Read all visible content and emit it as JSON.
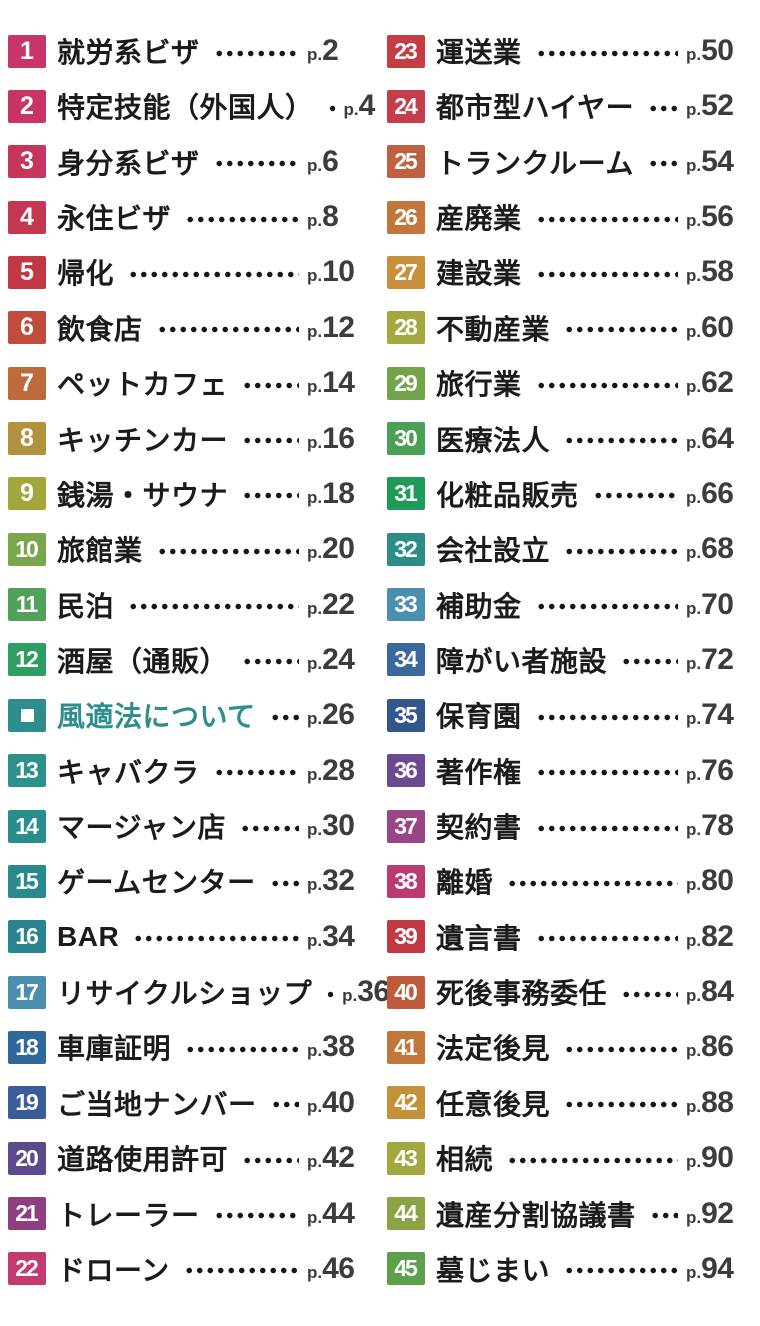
{
  "page_prefix": "p.",
  "text_color": "#1b1b1b",
  "page_number_color": "#3c3c3c",
  "dot_color": "#161616",
  "marker_icon": "white-square-icon",
  "columns": {
    "left": [
      {
        "num": "1",
        "title": "就労系ビザ",
        "page": "2",
        "color": "#c9356a"
      },
      {
        "num": "2",
        "title": "特定技能（外国人）",
        "page": "4",
        "color": "#c83563"
      },
      {
        "num": "3",
        "title": "身分系ビザ",
        "page": "6",
        "color": "#c6355c"
      },
      {
        "num": "4",
        "title": "永住ビザ",
        "page": "8",
        "color": "#c43750"
      },
      {
        "num": "5",
        "title": "帰化",
        "page": "10",
        "color": "#c33844"
      },
      {
        "num": "6",
        "title": "飲食店",
        "page": "12",
        "color": "#c14b3d"
      },
      {
        "num": "7",
        "title": "ペットカフェ",
        "page": "14",
        "color": "#bf6a3a"
      },
      {
        "num": "8",
        "title": "キッチンカー",
        "page": "16",
        "color": "#b2923c"
      },
      {
        "num": "9",
        "title": "銭湯・サウナ",
        "page": "18",
        "color": "#a3a63a"
      },
      {
        "num": "10",
        "title": "旅館業",
        "page": "20",
        "color": "#7aa64c"
      },
      {
        "num": "11",
        "title": "民泊",
        "page": "22",
        "color": "#4fa258"
      },
      {
        "num": "12",
        "title": "酒屋（通販）",
        "page": "24",
        "color": "#2e9e62"
      },
      {
        "marker": true,
        "num": "",
        "title": "風適法について",
        "page": "26",
        "color": "#2e8d8d",
        "title_color": "#2e8d8d"
      },
      {
        "num": "13",
        "title": "キャバクラ",
        "page": "28",
        "color": "#2d918b"
      },
      {
        "num": "14",
        "title": "マージャン店",
        "page": "30",
        "color": "#2a8d8d"
      },
      {
        "num": "15",
        "title": "ゲームセンター",
        "page": "32",
        "color": "#29898f"
      },
      {
        "num": "16",
        "title": "BAR",
        "page": "34",
        "color": "#28848f"
      },
      {
        "num": "17",
        "title": "リサイクルショップ",
        "page": "36",
        "color": "#4a8fae"
      },
      {
        "num": "18",
        "title": "車庫証明",
        "page": "38",
        "color": "#2f699c"
      },
      {
        "num": "19",
        "title": "ご当地ナンバー",
        "page": "40",
        "color": "#3a5c9b"
      },
      {
        "num": "20",
        "title": "道路使用許可",
        "page": "42",
        "color": "#5c4a8e"
      },
      {
        "num": "21",
        "title": "トレーラー",
        "page": "44",
        "color": "#8e3f80"
      },
      {
        "num": "22",
        "title": "ドローン",
        "page": "46",
        "color": "#c23a70"
      }
    ],
    "right": [
      {
        "num": "23",
        "title": "運送業",
        "page": "50",
        "color": "#c53c42"
      },
      {
        "num": "24",
        "title": "都市型ハイヤー",
        "page": "52",
        "color": "#c43e4b"
      },
      {
        "num": "25",
        "title": "トランクルーム",
        "page": "54",
        "color": "#c05f41"
      },
      {
        "num": "26",
        "title": "産廃業",
        "page": "56",
        "color": "#c3763c"
      },
      {
        "num": "27",
        "title": "建設業",
        "page": "58",
        "color": "#c6913a"
      },
      {
        "num": "28",
        "title": "不動産業",
        "page": "60",
        "color": "#a3a83f"
      },
      {
        "num": "29",
        "title": "旅行業",
        "page": "62",
        "color": "#72a44a"
      },
      {
        "num": "30",
        "title": "医療法人",
        "page": "64",
        "color": "#4aa052"
      },
      {
        "num": "31",
        "title": "化粧品販売",
        "page": "66",
        "color": "#1f9a58"
      },
      {
        "num": "32",
        "title": "会社設立",
        "page": "68",
        "color": "#2d8c86"
      },
      {
        "num": "33",
        "title": "補助金",
        "page": "70",
        "color": "#4a8fb0"
      },
      {
        "num": "34",
        "title": "障がい者施設",
        "page": "72",
        "color": "#39699f"
      },
      {
        "num": "35",
        "title": "保育園",
        "page": "74",
        "color": "#33568f"
      },
      {
        "num": "36",
        "title": "著作権",
        "page": "76",
        "color": "#6b4a92"
      },
      {
        "num": "37",
        "title": "契約書",
        "page": "78",
        "color": "#9a4585"
      },
      {
        "num": "38",
        "title": "離婚",
        "page": "80",
        "color": "#bb3a72"
      },
      {
        "num": "39",
        "title": "遺言書",
        "page": "82",
        "color": "#c13943"
      },
      {
        "num": "40",
        "title": "死後事務委任",
        "page": "84",
        "color": "#bf5a3c"
      },
      {
        "num": "41",
        "title": "法定後見",
        "page": "86",
        "color": "#c1763a"
      },
      {
        "num": "42",
        "title": "任意後見",
        "page": "88",
        "color": "#c49038"
      },
      {
        "num": "43",
        "title": "相続",
        "page": "90",
        "color": "#a2a840"
      },
      {
        "num": "44",
        "title": "遺産分割協議書",
        "page": "92",
        "color": "#8ba344"
      },
      {
        "num": "45",
        "title": "墓じまい",
        "page": "94",
        "color": "#5da04b"
      }
    ]
  }
}
